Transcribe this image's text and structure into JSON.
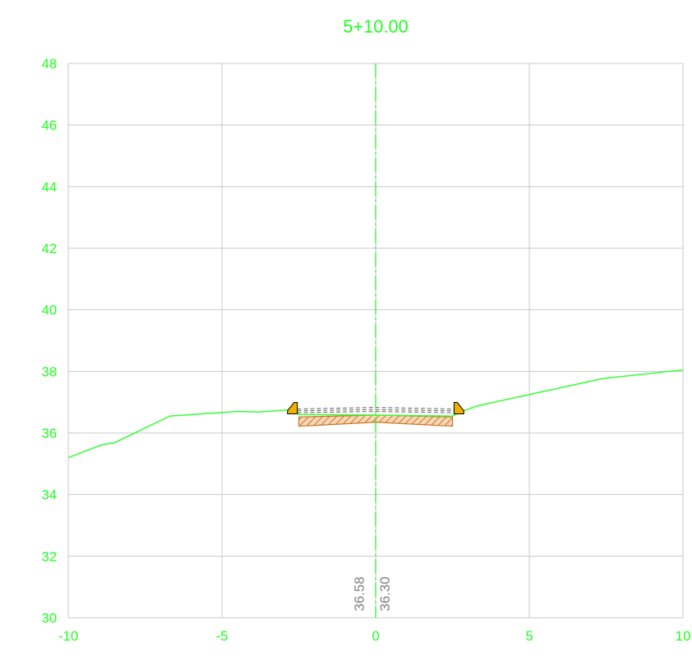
{
  "title": "5+10.00",
  "elevation_labels": [
    {
      "text": "36.58",
      "offset": -0.38,
      "elev": 30.0
    },
    {
      "text": "36.30",
      "offset": 0.45,
      "elev": 30.0
    }
  ],
  "colors": {
    "axis_text": "#22ff22",
    "ground": "#33ff33",
    "grid": "#c8c8c8",
    "pavement": "#d07020",
    "curb": "#f0b000",
    "design": "#606060"
  },
  "chart_data": {
    "type": "line",
    "title": "5+10.00",
    "xlabel": "",
    "ylabel": "",
    "xlim": [
      -10,
      10
    ],
    "ylim": [
      30,
      48
    ],
    "x_ticks": [
      -10,
      -5,
      0,
      5,
      10
    ],
    "x_tick_labels": [
      "-10",
      "-5",
      "0",
      "5",
      "10"
    ],
    "y_ticks": [
      30,
      32,
      34,
      36,
      38,
      40,
      42,
      44,
      46,
      48
    ],
    "y_tick_labels": [
      "30",
      "32",
      "34",
      "36",
      "38",
      "40",
      "42",
      "44",
      "46",
      "48"
    ],
    "grid": true,
    "series": [
      {
        "x": [
          -10,
          -8.9,
          -8.5,
          -6.7,
          -4.5,
          -3.8,
          -2.6,
          -2.5,
          0,
          2.5,
          2.8,
          3.3,
          5,
          7.4,
          10
        ],
        "y": [
          35.2,
          35.62,
          35.68,
          36.55,
          36.7,
          36.68,
          36.77,
          36.6,
          36.58,
          36.55,
          36.7,
          36.88,
          37.25,
          37.77,
          38.05
        ]
      }
    ],
    "pavement": {
      "x_left": -2.5,
      "x_right": 2.5,
      "top_center": 36.58,
      "top_edge": 36.52,
      "bottom_center": 36.35,
      "bottom_edge": 36.22
    },
    "design_lines": [
      {
        "x": [
          -2.55,
          0,
          2.55
        ],
        "y": [
          36.78,
          36.83,
          36.78
        ]
      },
      {
        "x": [
          -2.55,
          0,
          2.55
        ],
        "y": [
          36.72,
          36.76,
          36.72
        ]
      },
      {
        "x": [
          -2.55,
          0,
          2.55
        ],
        "y": [
          36.66,
          36.7,
          36.66
        ]
      }
    ],
    "curbs": [
      {
        "side": "left",
        "x": -2.55,
        "y": 36.62
      },
      {
        "side": "right",
        "x": 2.55,
        "y": 36.62
      }
    ],
    "centerline_x": 0
  }
}
